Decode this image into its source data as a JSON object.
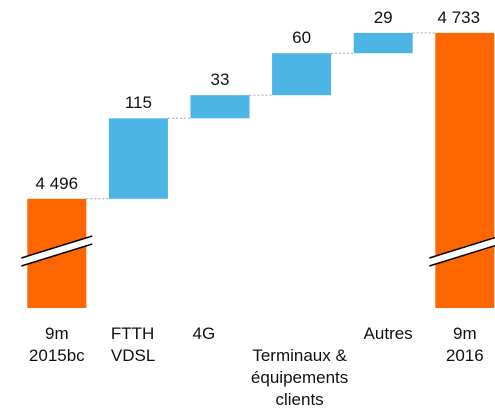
{
  "chart_data": {
    "type": "waterfall",
    "categories": [
      "9m\n2015bc",
      "FTTH\nVDSL",
      "4G",
      "Terminaux &\néquipements\nclients",
      "Autres",
      "9m\n2016"
    ],
    "values": [
      4496,
      115,
      33,
      60,
      29,
      4733
    ],
    "value_labels": [
      "4 496",
      "115",
      "33",
      "60",
      "29",
      "4 733"
    ],
    "totals": [
      true,
      false,
      false,
      false,
      false,
      true
    ],
    "total_color": "#ff6600",
    "delta_color": "#4cb5e6",
    "ylim": [
      4340,
      4780
    ]
  }
}
